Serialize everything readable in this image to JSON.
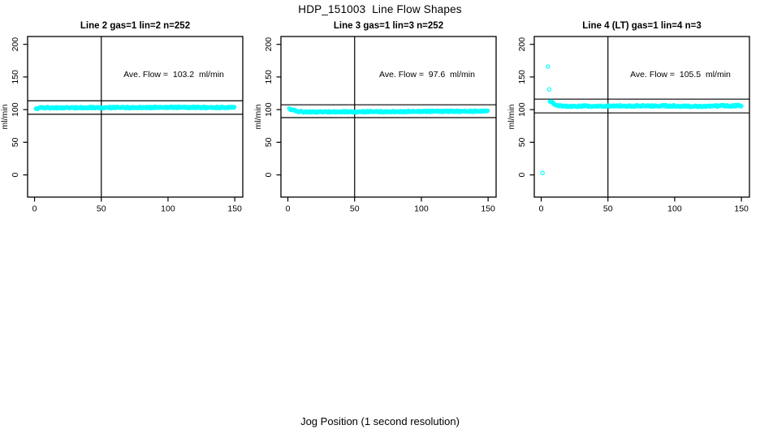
{
  "figure": {
    "title": "HDP_151003  Line Flow Shapes",
    "xlabel": "Jog Position (1 second resolution)",
    "background": "#FFFFFF",
    "axis_color": "#000000",
    "point_color": "#00FFFF"
  },
  "chart_data": [
    {
      "type": "scatter",
      "title": "Line 2 gas=1 lin=2 n=252",
      "annotation": "Ave. Flow =  103.2  ml/min",
      "ave_flow_ml_min": 103.2,
      "n_points": 252,
      "ylabel": "ml/min",
      "xlim": [
        -5.2,
        156
      ],
      "ylim": [
        -34,
        212
      ],
      "x_ticks": [
        0,
        50,
        100,
        150
      ],
      "y_ticks": [
        0,
        50,
        100,
        150,
        200
      ],
      "grid": false,
      "vline_x": 50,
      "hlines": [
        113.5,
        92.9
      ],
      "series": [
        {
          "name": "flow",
          "band": [
            [
              1,
              100.6
            ],
            [
              3,
              102.2
            ],
            [
              6,
              102.9
            ],
            [
              40,
              103.0
            ],
            [
              90,
              103.4
            ],
            [
              150,
              103.2
            ]
          ],
          "spread": 1.1,
          "step": 0.59,
          "outliers": []
        }
      ]
    },
    {
      "type": "scatter",
      "title": "Line 3 gas=1 lin=3 n=252",
      "annotation": "Ave. Flow =  97.6  ml/min",
      "ave_flow_ml_min": 97.6,
      "n_points": 252,
      "ylabel": "ml/min",
      "xlim": [
        -5.2,
        156
      ],
      "ylim": [
        -34,
        212
      ],
      "x_ticks": [
        0,
        50,
        100,
        150
      ],
      "y_ticks": [
        0,
        50,
        100,
        150,
        200
      ],
      "grid": false,
      "vline_x": 50,
      "hlines": [
        107.4,
        87.8
      ],
      "series": [
        {
          "name": "flow",
          "band": [
            [
              1,
              100.8
            ],
            [
              4,
              99.0
            ],
            [
              7,
              97.2
            ],
            [
              12,
              96.6
            ],
            [
              40,
              96.6
            ],
            [
              100,
              97.2
            ],
            [
              150,
              97.6
            ]
          ],
          "spread": 1.1,
          "step": 0.59,
          "outliers": []
        }
      ]
    },
    {
      "type": "scatter",
      "title": "Line 4 (LT) gas=1 lin=4 n=3",
      "annotation": "Ave. Flow =  105.5  ml/min",
      "ave_flow_ml_min": 105.5,
      "n_points": 3,
      "ylabel": "ml/min",
      "xlim": [
        -5.2,
        156
      ],
      "ylim": [
        -34,
        212
      ],
      "x_ticks": [
        0,
        50,
        100,
        150
      ],
      "y_ticks": [
        0,
        50,
        100,
        150,
        200
      ],
      "grid": false,
      "vline_x": 50,
      "hlines": [
        116.1,
        95.0
      ],
      "series": [
        {
          "name": "flow",
          "band": [
            [
              6.5,
              113.0
            ],
            [
              8,
              111.0
            ],
            [
              10,
              108.5
            ],
            [
              13,
              106.5
            ],
            [
              18,
              105.2
            ],
            [
              40,
              105.5
            ],
            [
              80,
              105.8
            ],
            [
              120,
              105.2
            ],
            [
              150,
              106.0
            ]
          ],
          "spread": 1.2,
          "step": 0.6,
          "outliers": [
            [
              1,
              3
            ],
            [
              5,
              166
            ],
            [
              6,
              131
            ]
          ]
        }
      ]
    }
  ]
}
